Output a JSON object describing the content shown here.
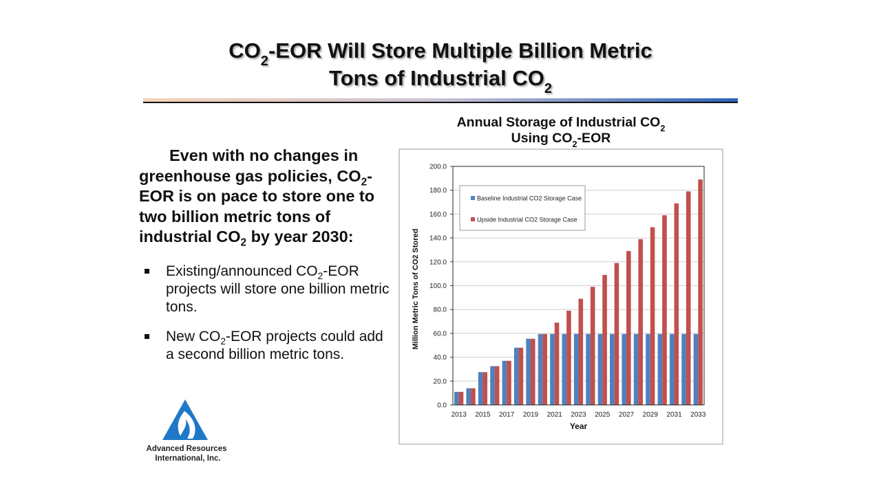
{
  "title": {
    "lines": [
      [
        "CO",
        {
          "sub": "2"
        },
        "-EOR Will Store Multiple Billion Metric"
      ],
      [
        "Tons of Industrial CO",
        {
          "sub": "2"
        }
      ]
    ]
  },
  "lead": [
    "Even with no changes in greenhouse gas policies, CO",
    {
      "sub": "2"
    },
    "-EOR is on pace to store one to two billion metric tons of industrial CO",
    {
      "sub": "2"
    },
    " by year 2030:"
  ],
  "bullets": [
    [
      "Existing/announced CO",
      {
        "sub": "2"
      },
      "-EOR projects will store one billion metric tons."
    ],
    [
      "New CO",
      {
        "sub": "2"
      },
      "-EOR projects could add a second billion metric tons."
    ]
  ],
  "logo": {
    "lines": [
      "Advanced Resources",
      "International, Inc."
    ]
  },
  "chart_data": {
    "type": "bar",
    "title": {
      "lines": [
        [
          "Annual Storage of Industrial CO",
          {
            "sub": "2"
          }
        ],
        [
          "Using CO",
          {
            "sub": "2"
          },
          "-EOR"
        ]
      ]
    },
    "x_label": "Year",
    "y_label": "Million Metric Tons of CO2 Stored",
    "categories": [
      "2013",
      null,
      "2015",
      null,
      "2017",
      null,
      "2019",
      null,
      "2021",
      null,
      "2023",
      null,
      "2025",
      null,
      "2027",
      null,
      "2029",
      null,
      "2031",
      null,
      "2033"
    ],
    "series": [
      {
        "name": "Baseline Industrial CO2 Storage Case",
        "color": "#4f81bd",
        "values": [
          11,
          14,
          27.5,
          32.5,
          37,
          48,
          55.5,
          59.5,
          59.5,
          59.5,
          59.5,
          59.5,
          59.5,
          59.5,
          59.5,
          59.5,
          59.5,
          59.5,
          59.5,
          59.5,
          59.5
        ]
      },
      {
        "name": "Upside Industrial CO2 Storage Case",
        "color": "#c0504d",
        "values": [
          11,
          14,
          27.5,
          32.5,
          37,
          48,
          55.5,
          59.5,
          69,
          79,
          89,
          99,
          109,
          119,
          129,
          139,
          149,
          159,
          169,
          179,
          189
        ]
      }
    ],
    "ylim": [
      0,
      200
    ],
    "yticks": [
      {
        "value": 0,
        "label": "0.0"
      },
      {
        "value": 20,
        "label": "20.0"
      },
      {
        "value": 40,
        "label": "40.0"
      },
      {
        "value": 60,
        "label": "60.0"
      },
      {
        "value": 80,
        "label": "80.0"
      },
      {
        "value": 100,
        "label": "100.0"
      },
      {
        "value": 120,
        "label": "120.0"
      },
      {
        "value": 140,
        "label": "140.0"
      },
      {
        "value": 160,
        "label": "160.0"
      },
      {
        "value": 180,
        "label": "180.0"
      },
      {
        "value": 200,
        "label": "200.0"
      }
    ],
    "grid": true,
    "legend": "upper-left"
  }
}
